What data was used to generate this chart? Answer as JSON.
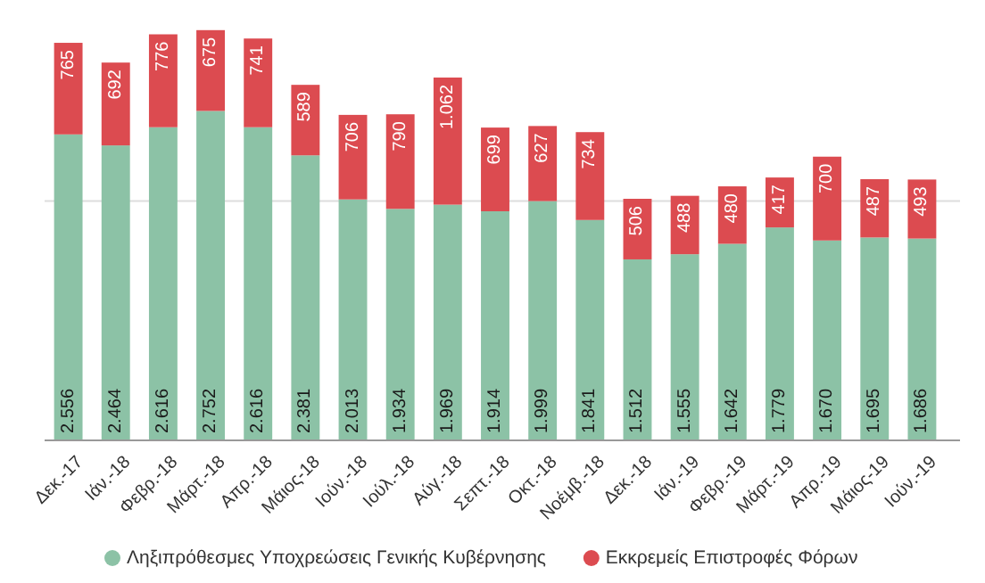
{
  "chart_data": {
    "type": "bar",
    "stacked": true,
    "categories": [
      "Δεκ.-17",
      "Ιάν.-18",
      "Φεβρ.-18",
      "Μάρτ.-18",
      "Απρ.-18",
      "Μάιος-18",
      "Ιούν.-18",
      "Ιούλ.-18",
      "Αύγ.-18",
      "Σεπτ.-18",
      "Οκτ.-18",
      "Νοέμβ.-18",
      "Δεκ.-18",
      "Ιάν.-19",
      "Φεβρ.-19",
      "Μάρτ.-19",
      "Απρ.-19",
      "Μάιος-19",
      "Ιούν.-19"
    ],
    "series": [
      {
        "name": "Ληξιπρόθεσμες Υποχρεώσεις Γενικής Κυβέρνησης",
        "color": "#8cc2a6",
        "values": [
          2556,
          2464,
          2616,
          2752,
          2616,
          2381,
          2013,
          1934,
          1969,
          1914,
          1999,
          1841,
          1512,
          1555,
          1642,
          1779,
          1670,
          1695,
          1686
        ],
        "value_labels": [
          "2.556",
          "2.464",
          "2.616",
          "2.752",
          "2.616",
          "2.381",
          "2.013",
          "1.934",
          "1.969",
          "1.914",
          "1.999",
          "1.841",
          "1.512",
          "1.555",
          "1.642",
          "1.779",
          "1.670",
          "1.695",
          "1.686"
        ]
      },
      {
        "name": "Εκκρεμείς Επιστροφές Φόρων",
        "color": "#dc4b50",
        "values": [
          765,
          692,
          776,
          675,
          741,
          589,
          706,
          790,
          1062,
          699,
          627,
          734,
          506,
          488,
          480,
          417,
          700,
          487,
          493
        ],
        "value_labels": [
          "765",
          "692",
          "776",
          "675",
          "741",
          "589",
          "706",
          "790",
          "1.062",
          "699",
          "627",
          "734",
          "506",
          "488",
          "480",
          "417",
          "700",
          "487",
          "493"
        ]
      }
    ],
    "ref_lines": [
      {
        "axis": "y",
        "value": 2000,
        "color": "#dddddd"
      }
    ],
    "tick_labels": "x",
    "legend": "bottom"
  }
}
